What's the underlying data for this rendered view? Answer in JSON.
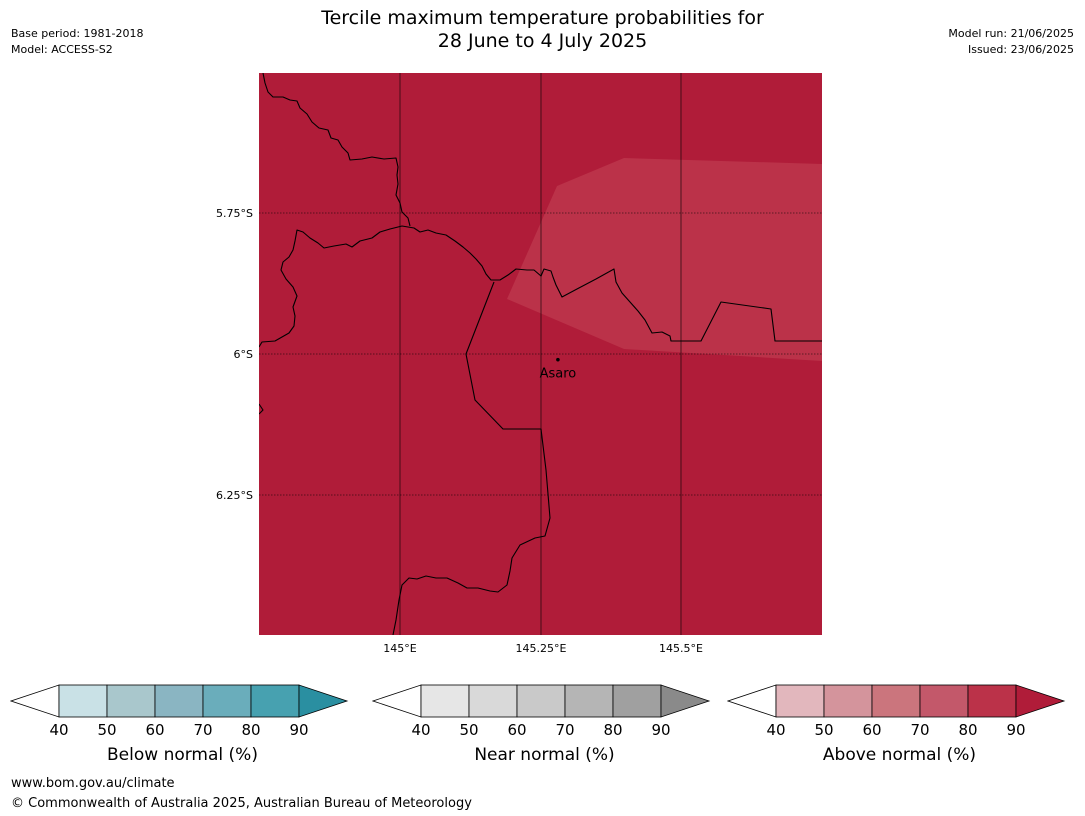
{
  "header": {
    "base_period": "Base period: 1981-2018",
    "model": "Model: ACCESS-S2",
    "title_line1": "Tercile maximum temperature probabilities for",
    "title_line2": "28 June to 4 July 2025",
    "model_run": "Model run: 21/06/2025",
    "issued": "Issued: 23/06/2025"
  },
  "map": {
    "colors": {
      "above_90": "#b01c39",
      "above_80": "#bb3249",
      "border": "#000000",
      "gridline": "#000000"
    },
    "lat_labels": [
      "5.75°S",
      "6°S",
      "6.25°S"
    ],
    "lon_labels": [
      "145°E",
      "145.25°E",
      "145.5°E"
    ],
    "place": {
      "name": "Asaro",
      "lon": 145.28,
      "lat": -6.01
    }
  },
  "legends": [
    {
      "title": "Below normal (%)",
      "ticks": [
        "40",
        "50",
        "60",
        "70",
        "80",
        "90"
      ],
      "colors": [
        "#ffffff",
        "#c9e1e6",
        "#a9c7cc",
        "#8ab5c2",
        "#6aadbb",
        "#47a1b0",
        "#2a8fa1"
      ]
    },
    {
      "title": "Near normal (%)",
      "ticks": [
        "40",
        "50",
        "60",
        "70",
        "80",
        "90"
      ],
      "colors": [
        "#ffffff",
        "#e6e6e6",
        "#d9d9d9",
        "#c9c9c9",
        "#b5b5b5",
        "#a0a0a0",
        "#8a8a8a"
      ]
    },
    {
      "title": "Above normal (%)",
      "ticks": [
        "40",
        "50",
        "60",
        "70",
        "80",
        "90"
      ],
      "colors": [
        "#ffffff",
        "#e2b7bd",
        "#d4949c",
        "#cb757d",
        "#c3586a",
        "#bb3249",
        "#b01c39"
      ]
    }
  ],
  "footer": {
    "url": "www.bom.gov.au/climate",
    "copyright": "© Commonwealth of Australia 2025, Australian Bureau of Meteorology"
  }
}
